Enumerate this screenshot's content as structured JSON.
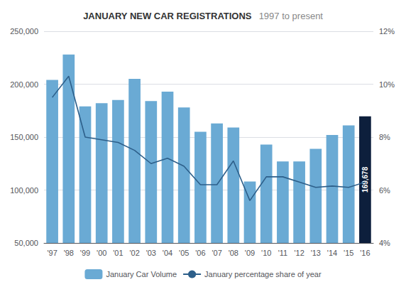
{
  "chart_data": {
    "type": "bar",
    "title": "JANUARY NEW CAR REGISTRATIONS",
    "subtitle": "1997 to present",
    "categories": [
      "'97",
      "'98",
      "'99",
      "'00",
      "'01",
      "'02",
      "'03",
      "'04",
      "'05",
      "'06",
      "'07",
      "'08",
      "'09",
      "'10",
      "'11",
      "'12",
      "'13",
      "'14",
      "'15",
      "'16"
    ],
    "series": [
      {
        "name": "January Car Volume",
        "type": "bar",
        "color": "#6aaad4",
        "colors": [
          "#6aaad4",
          "#6aaad4",
          "#6aaad4",
          "#6aaad4",
          "#6aaad4",
          "#6aaad4",
          "#6aaad4",
          "#6aaad4",
          "#6aaad4",
          "#6aaad4",
          "#6aaad4",
          "#6aaad4",
          "#6aaad4",
          "#6aaad4",
          "#6aaad4",
          "#6aaad4",
          "#6aaad4",
          "#6aaad4",
          "#6aaad4",
          "#0d1f3c"
        ],
        "values": [
          204000,
          228000,
          179000,
          182000,
          185000,
          205000,
          184000,
          193000,
          178000,
          155000,
          163000,
          159000,
          108000,
          143000,
          127000,
          127000,
          139000,
          152000,
          161000,
          169678
        ]
      },
      {
        "name": "January percentage share of year",
        "type": "line",
        "color": "#2d5f8a",
        "axis": "y2",
        "values": [
          9.5,
          10.3,
          8.0,
          7.9,
          7.8,
          7.5,
          7.0,
          7.2,
          6.9,
          6.2,
          6.2,
          7.1,
          5.6,
          6.5,
          6.5,
          6.3,
          6.1,
          6.15,
          6.1,
          6.3
        ]
      }
    ],
    "ylim": [
      50000,
      250000
    ],
    "yticks": [
      {
        "value": 50000,
        "label": "50,000"
      },
      {
        "value": 100000,
        "label": "100,000"
      },
      {
        "value": 150000,
        "label": "150,000"
      },
      {
        "value": 200000,
        "label": "200,000"
      },
      {
        "value": 250000,
        "label": "250,000"
      }
    ],
    "y2lim": [
      4,
      12
    ],
    "y2ticks": [
      {
        "value": 4,
        "label": "4%"
      },
      {
        "value": 6,
        "label": "6%"
      },
      {
        "value": 8,
        "label": "8%"
      },
      {
        "value": 10,
        "label": "10%"
      },
      {
        "value": 12,
        "label": "12%"
      }
    ],
    "grid": true,
    "legend": "bottom",
    "annotations": [
      {
        "text": "169,678",
        "category": "'16"
      }
    ]
  }
}
